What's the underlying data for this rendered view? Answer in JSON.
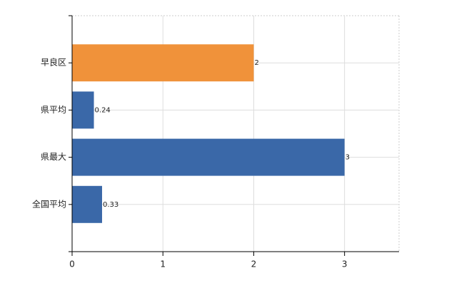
{
  "chart_data": {
    "type": "bar",
    "orientation": "horizontal",
    "categories": [
      "早良区",
      "県平均",
      "県最大",
      "全国平均"
    ],
    "values": [
      2,
      0.24,
      3,
      0.33
    ],
    "colors": [
      "#f0923a",
      "#3a68a8",
      "#3a68a8",
      "#3a68a8"
    ],
    "xlim": [
      0,
      3.6
    ],
    "xticks": [
      0,
      1,
      2,
      3
    ],
    "grid": true
  }
}
